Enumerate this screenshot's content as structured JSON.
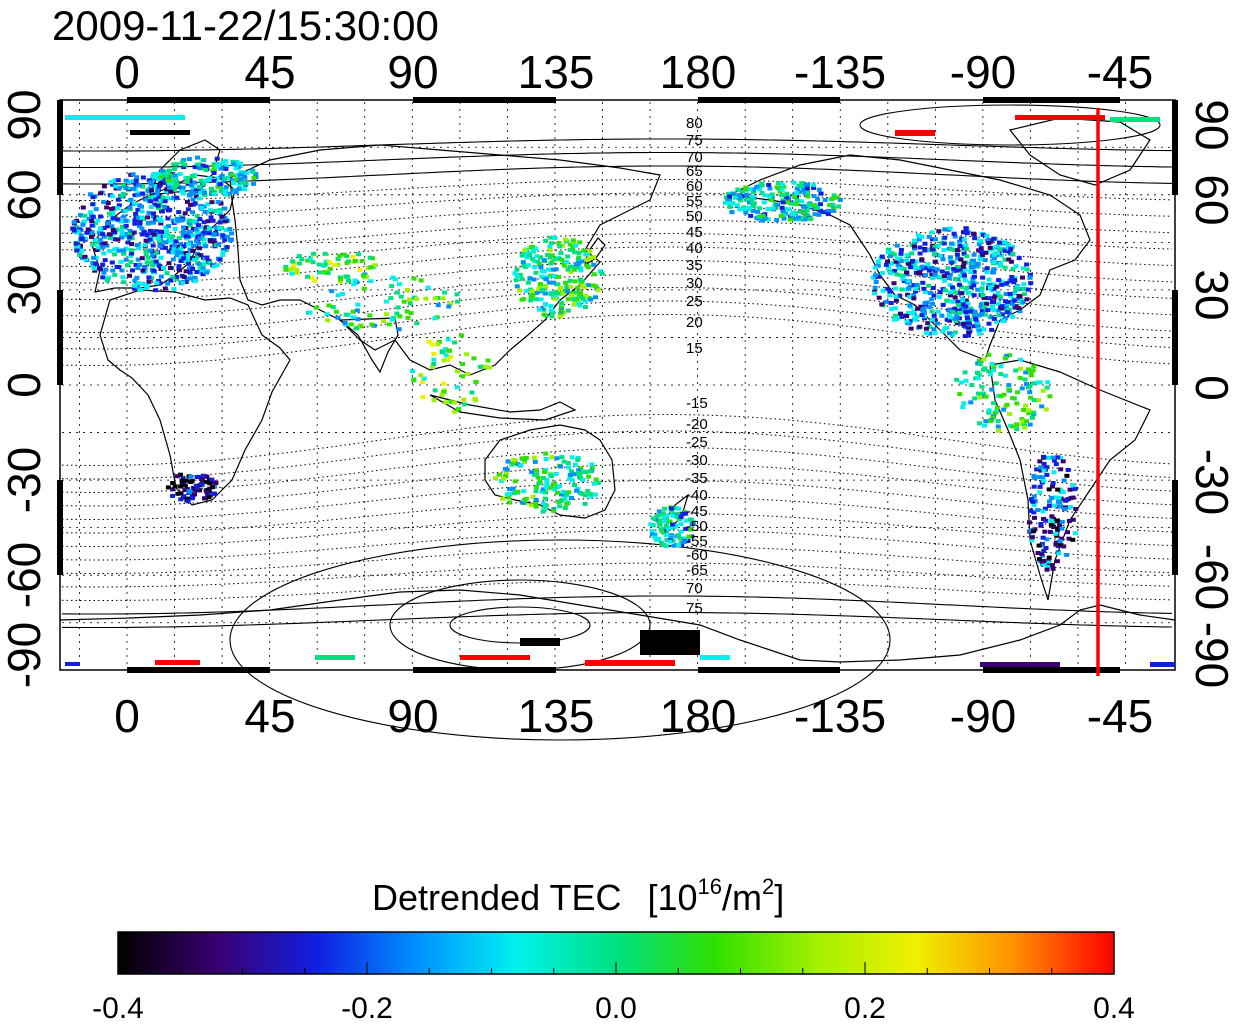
{
  "timestamp": "2009-11-22/15:30:00",
  "top_axis_ticks": [
    "0",
    "45",
    "90",
    "135",
    "180",
    "-135",
    "-90",
    "-45"
  ],
  "bottom_axis_ticks": [
    "0",
    "45",
    "90",
    "135",
    "180",
    "-135",
    "-90",
    "-45"
  ],
  "left_axis_ticks": [
    "90",
    "60",
    "30",
    "0",
    "-30",
    "-60",
    "-90"
  ],
  "right_axis_ticks": [
    "90",
    "60",
    "30",
    "0",
    "-30",
    "-60",
    "-90"
  ],
  "north_contour_labels": [
    "80",
    "75",
    "70",
    "65",
    "60",
    "55",
    "50",
    "45",
    "40",
    "35",
    "30",
    "25",
    "20",
    "15"
  ],
  "south_contour_labels": [
    "-15",
    "-20",
    "-25",
    "-30",
    "-35",
    "-40",
    "-45",
    "-50",
    "-55",
    "-60",
    "-65",
    "70",
    "75"
  ],
  "colorbar": {
    "title": "Detrended TEC",
    "unit_prefix": "[10",
    "unit_exp1": "16",
    "unit_mid": "/m",
    "unit_exp2": "2",
    "unit_suffix": "]",
    "ticks": [
      "-0.4",
      "-0.2",
      "0.0",
      "0.2",
      "0.4"
    ],
    "min": -0.4,
    "max": 0.4,
    "colors": [
      "#000000",
      "#3a0070",
      "#1020e0",
      "#0090ff",
      "#00f0f0",
      "#00e080",
      "#30e000",
      "#a0f000",
      "#f0f000",
      "#ff9000",
      "#ff0000"
    ]
  },
  "red_marker_color": "#ff0000",
  "red_marker_longitude": -50
}
